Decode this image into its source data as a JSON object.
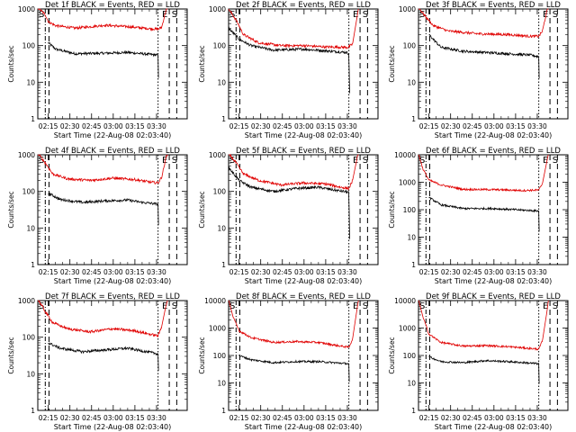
{
  "chart_data": [
    {
      "type": "line",
      "title": "Det 1f BLACK = Events, RED = LLD",
      "ylabel": "Counts/sec",
      "xlabel": "Start Time (22-Aug-08 02:03:40)",
      "ytick_labels": [
        "1",
        "10",
        "100",
        "1000"
      ],
      "yexp_max": 3,
      "xtick_labels": [
        "02:15",
        "02:30",
        "02:45",
        "03:00",
        "03:15",
        "03:30"
      ],
      "markers": [
        "S",
        "E",
        "S"
      ],
      "series": [
        {
          "name": "Events",
          "color": "#000000",
          "shape": [
            [
              0.05,
              null
            ],
            [
              0.07,
              120
            ],
            [
              0.12,
              80
            ],
            [
              0.25,
              60
            ],
            [
              0.45,
              62
            ],
            [
              0.6,
              65
            ],
            [
              0.7,
              60
            ],
            [
              0.805,
              55
            ],
            [
              0.81,
              5
            ]
          ]
        },
        {
          "name": "LLD",
          "color": "#e00000",
          "shape": [
            [
              0.0,
              1100
            ],
            [
              0.05,
              700
            ],
            [
              0.07,
              450
            ],
            [
              0.12,
              350
            ],
            [
              0.25,
              300
            ],
            [
              0.45,
              360
            ],
            [
              0.6,
              330
            ],
            [
              0.75,
              290
            ],
            [
              0.805,
              280
            ],
            [
              0.83,
              320
            ],
            [
              0.86,
              1000
            ],
            [
              0.87,
              1100
            ]
          ]
        }
      ]
    },
    {
      "type": "line",
      "title": "Det 2f BLACK = Events, RED = LLD",
      "ylabel": "Counts/sec",
      "xlabel": "Start Time (22-Aug-08 02:03:40)",
      "ytick_labels": [
        "1",
        "10",
        "100",
        "1000"
      ],
      "yexp_max": 3,
      "xtick_labels": [
        "02:15",
        "02:30",
        "02:45",
        "03:00",
        "03:15",
        "03:30"
      ],
      "markers": [
        "S",
        "E",
        "S"
      ],
      "series": [
        {
          "name": "Events",
          "color": "#000000",
          "shape": [
            [
              0.0,
              300
            ],
            [
              0.07,
              150
            ],
            [
              0.15,
              100
            ],
            [
              0.3,
              75
            ],
            [
              0.5,
              80
            ],
            [
              0.65,
              72
            ],
            [
              0.79,
              65
            ],
            [
              0.805,
              60
            ],
            [
              0.81,
              5
            ]
          ]
        },
        {
          "name": "LLD",
          "color": "#e00000",
          "shape": [
            [
              0.0,
              1000
            ],
            [
              0.05,
              500
            ],
            [
              0.1,
              200
            ],
            [
              0.2,
              120
            ],
            [
              0.35,
              100
            ],
            [
              0.5,
              100
            ],
            [
              0.65,
              92
            ],
            [
              0.8,
              90
            ],
            [
              0.83,
              110
            ],
            [
              0.86,
              600
            ],
            [
              0.87,
              1100
            ]
          ]
        }
      ]
    },
    {
      "type": "line",
      "title": "Det 3f BLACK = Events, RED = LLD",
      "ylabel": "Counts/sec",
      "xlabel": "Start Time (22-Aug-08 02:03:40)",
      "ytick_labels": [
        "1",
        "10",
        "100",
        "1000"
      ],
      "yexp_max": 3,
      "xtick_labels": [
        "02:15",
        "02:30",
        "02:45",
        "03:00",
        "03:15",
        "03:30"
      ],
      "markers": [
        "S",
        "E",
        "S"
      ],
      "series": [
        {
          "name": "Events",
          "color": "#000000",
          "shape": [
            [
              0.05,
              null
            ],
            [
              0.07,
              200
            ],
            [
              0.15,
              90
            ],
            [
              0.3,
              70
            ],
            [
              0.45,
              65
            ],
            [
              0.6,
              60
            ],
            [
              0.75,
              55
            ],
            [
              0.805,
              50
            ],
            [
              0.81,
              5
            ]
          ]
        },
        {
          "name": "LLD",
          "color": "#e00000",
          "shape": [
            [
              0.0,
              1100
            ],
            [
              0.05,
              600
            ],
            [
              0.1,
              350
            ],
            [
              0.2,
              250
            ],
            [
              0.4,
              210
            ],
            [
              0.6,
              200
            ],
            [
              0.75,
              180
            ],
            [
              0.805,
              180
            ],
            [
              0.83,
              250
            ],
            [
              0.86,
              900
            ],
            [
              0.87,
              1100
            ]
          ]
        }
      ]
    },
    {
      "type": "line",
      "title": "Det 4f BLACK = Events, RED = LLD",
      "ylabel": "Counts/sec",
      "xlabel": "Start Time (22-Aug-08 02:03:40)",
      "ytick_labels": [
        "1",
        "10",
        "100",
        "1000"
      ],
      "yexp_max": 3,
      "xtick_labels": [
        "02:15",
        "02:30",
        "02:45",
        "03:00",
        "03:15",
        "03:30"
      ],
      "markers": [
        "S",
        "E",
        "S"
      ],
      "series": [
        {
          "name": "Events",
          "color": "#000000",
          "shape": [
            [
              0.05,
              null
            ],
            [
              0.07,
              90
            ],
            [
              0.15,
              60
            ],
            [
              0.3,
              50
            ],
            [
              0.45,
              55
            ],
            [
              0.6,
              58
            ],
            [
              0.7,
              50
            ],
            [
              0.805,
              45
            ],
            [
              0.81,
              5
            ]
          ]
        },
        {
          "name": "LLD",
          "color": "#e00000",
          "shape": [
            [
              0.0,
              1100
            ],
            [
              0.05,
              600
            ],
            [
              0.1,
              300
            ],
            [
              0.2,
              220
            ],
            [
              0.35,
              200
            ],
            [
              0.5,
              230
            ],
            [
              0.65,
              210
            ],
            [
              0.75,
              180
            ],
            [
              0.805,
              170
            ],
            [
              0.83,
              250
            ],
            [
              0.86,
              900
            ],
            [
              0.87,
              1100
            ]
          ]
        }
      ]
    },
    {
      "type": "line",
      "title": "Det 5f BLACK = Events, RED = LLD",
      "ylabel": "Counts/sec",
      "xlabel": "Start Time (22-Aug-08 02:03:40)",
      "ytick_labels": [
        "1",
        "10",
        "100",
        "1000"
      ],
      "yexp_max": 3,
      "xtick_labels": [
        "02:15",
        "02:30",
        "02:45",
        "03:00",
        "03:15",
        "03:30"
      ],
      "markers": [
        "S",
        "E",
        "S"
      ],
      "series": [
        {
          "name": "Events",
          "color": "#000000",
          "shape": [
            [
              0.0,
              450
            ],
            [
              0.07,
              200
            ],
            [
              0.15,
              130
            ],
            [
              0.3,
              100
            ],
            [
              0.45,
              120
            ],
            [
              0.6,
              130
            ],
            [
              0.7,
              110
            ],
            [
              0.805,
              95
            ],
            [
              0.81,
              5
            ]
          ]
        },
        {
          "name": "LLD",
          "color": "#e00000",
          "shape": [
            [
              0.0,
              1100
            ],
            [
              0.05,
              600
            ],
            [
              0.1,
              300
            ],
            [
              0.2,
              200
            ],
            [
              0.35,
              150
            ],
            [
              0.5,
              170
            ],
            [
              0.65,
              160
            ],
            [
              0.75,
              130
            ],
            [
              0.805,
              120
            ],
            [
              0.83,
              200
            ],
            [
              0.86,
              800
            ],
            [
              0.87,
              1100
            ]
          ]
        }
      ]
    },
    {
      "type": "line",
      "title": "Det 6f BLACK = Events, RED = LLD",
      "ylabel": "Counts/sec",
      "xlabel": "Start Time (22-Aug-08 02:03:40)",
      "ytick_labels": [
        "1",
        "10",
        "100",
        "1000",
        "10000"
      ],
      "yexp_max": 4,
      "xtick_labels": [
        "02:15",
        "02:30",
        "02:45",
        "03:00",
        "03:15",
        "03:30"
      ],
      "markers": [
        "S",
        "E",
        "S"
      ],
      "series": [
        {
          "name": "Events",
          "color": "#000000",
          "shape": [
            [
              0.05,
              null
            ],
            [
              0.07,
              280
            ],
            [
              0.15,
              150
            ],
            [
              0.3,
              110
            ],
            [
              0.5,
              110
            ],
            [
              0.65,
              100
            ],
            [
              0.805,
              90
            ],
            [
              0.81,
              5
            ]
          ]
        },
        {
          "name": "LLD",
          "color": "#e00000",
          "shape": [
            [
              0.0,
              11000
            ],
            [
              0.03,
              3000
            ],
            [
              0.07,
              1200
            ],
            [
              0.15,
              800
            ],
            [
              0.3,
              550
            ],
            [
              0.5,
              540
            ],
            [
              0.7,
              500
            ],
            [
              0.805,
              520
            ],
            [
              0.83,
              900
            ],
            [
              0.86,
              6000
            ],
            [
              0.87,
              11000
            ]
          ]
        }
      ]
    },
    {
      "type": "line",
      "title": "Det 7f BLACK = Events, RED = LLD",
      "ylabel": "Counts/sec",
      "xlabel": "Start Time (22-Aug-08 02:03:40)",
      "ytick_labels": [
        "1",
        "10",
        "100",
        "1000"
      ],
      "yexp_max": 3,
      "xtick_labels": [
        "02:15",
        "02:30",
        "02:45",
        "03:00",
        "03:15",
        "03:30"
      ],
      "markers": [
        "S",
        "E",
        "S"
      ],
      "series": [
        {
          "name": "Events",
          "color": "#000000",
          "shape": [
            [
              0.05,
              null
            ],
            [
              0.07,
              70
            ],
            [
              0.15,
              50
            ],
            [
              0.3,
              40
            ],
            [
              0.45,
              45
            ],
            [
              0.6,
              50
            ],
            [
              0.7,
              42
            ],
            [
              0.805,
              35
            ],
            [
              0.81,
              6
            ]
          ]
        },
        {
          "name": "LLD",
          "color": "#e00000",
          "shape": [
            [
              0.0,
              1100
            ],
            [
              0.05,
              500
            ],
            [
              0.1,
              250
            ],
            [
              0.2,
              170
            ],
            [
              0.35,
              140
            ],
            [
              0.5,
              170
            ],
            [
              0.65,
              150
            ],
            [
              0.75,
              120
            ],
            [
              0.805,
              110
            ],
            [
              0.83,
              200
            ],
            [
              0.86,
              800
            ],
            [
              0.87,
              1100
            ]
          ]
        }
      ]
    },
    {
      "type": "line",
      "title": "Det 8f BLACK = Events, RED = LLD",
      "ylabel": "Counts/sec",
      "xlabel": "Start Time (22-Aug-08 02:03:40)",
      "ytick_labels": [
        "1",
        "10",
        "100",
        "1000",
        "10000"
      ],
      "yexp_max": 4,
      "xtick_labels": [
        "02:15",
        "02:30",
        "02:45",
        "03:00",
        "03:15",
        "03:30"
      ],
      "markers": [
        "S",
        "E",
        "S"
      ],
      "series": [
        {
          "name": "Events",
          "color": "#000000",
          "shape": [
            [
              0.05,
              null
            ],
            [
              0.07,
              100
            ],
            [
              0.15,
              70
            ],
            [
              0.3,
              55
            ],
            [
              0.45,
              60
            ],
            [
              0.6,
              60
            ],
            [
              0.7,
              55
            ],
            [
              0.805,
              50
            ],
            [
              0.81,
              4
            ]
          ]
        },
        {
          "name": "LLD",
          "color": "#e00000",
          "shape": [
            [
              0.0,
              11000
            ],
            [
              0.03,
              2500
            ],
            [
              0.07,
              800
            ],
            [
              0.15,
              450
            ],
            [
              0.3,
              300
            ],
            [
              0.45,
              320
            ],
            [
              0.6,
              300
            ],
            [
              0.75,
              220
            ],
            [
              0.805,
              200
            ],
            [
              0.83,
              400
            ],
            [
              0.86,
              5000
            ],
            [
              0.87,
              11000
            ]
          ]
        }
      ]
    },
    {
      "type": "line",
      "title": "Det 9f BLACK = Events, RED = LLD",
      "ylabel": "Counts/sec",
      "xlabel": "Start Time (22-Aug-08 02:03:40)",
      "ytick_labels": [
        "1",
        "10",
        "100",
        "1000",
        "10000"
      ],
      "yexp_max": 4,
      "xtick_labels": [
        "02:15",
        "02:30",
        "02:45",
        "03:00",
        "03:15",
        "03:30"
      ],
      "markers": [
        "S",
        "E",
        "S"
      ],
      "series": [
        {
          "name": "Events",
          "color": "#000000",
          "shape": [
            [
              0.05,
              null
            ],
            [
              0.07,
              90
            ],
            [
              0.15,
              60
            ],
            [
              0.3,
              55
            ],
            [
              0.45,
              65
            ],
            [
              0.6,
              60
            ],
            [
              0.7,
              55
            ],
            [
              0.805,
              50
            ],
            [
              0.81,
              3
            ]
          ]
        },
        {
          "name": "LLD",
          "color": "#e00000",
          "shape": [
            [
              0.0,
              11000
            ],
            [
              0.03,
              2500
            ],
            [
              0.07,
              600
            ],
            [
              0.15,
              300
            ],
            [
              0.3,
              220
            ],
            [
              0.45,
              230
            ],
            [
              0.6,
              210
            ],
            [
              0.75,
              180
            ],
            [
              0.805,
              170
            ],
            [
              0.83,
              350
            ],
            [
              0.86,
              4000
            ],
            [
              0.87,
              11000
            ]
          ]
        }
      ]
    }
  ]
}
